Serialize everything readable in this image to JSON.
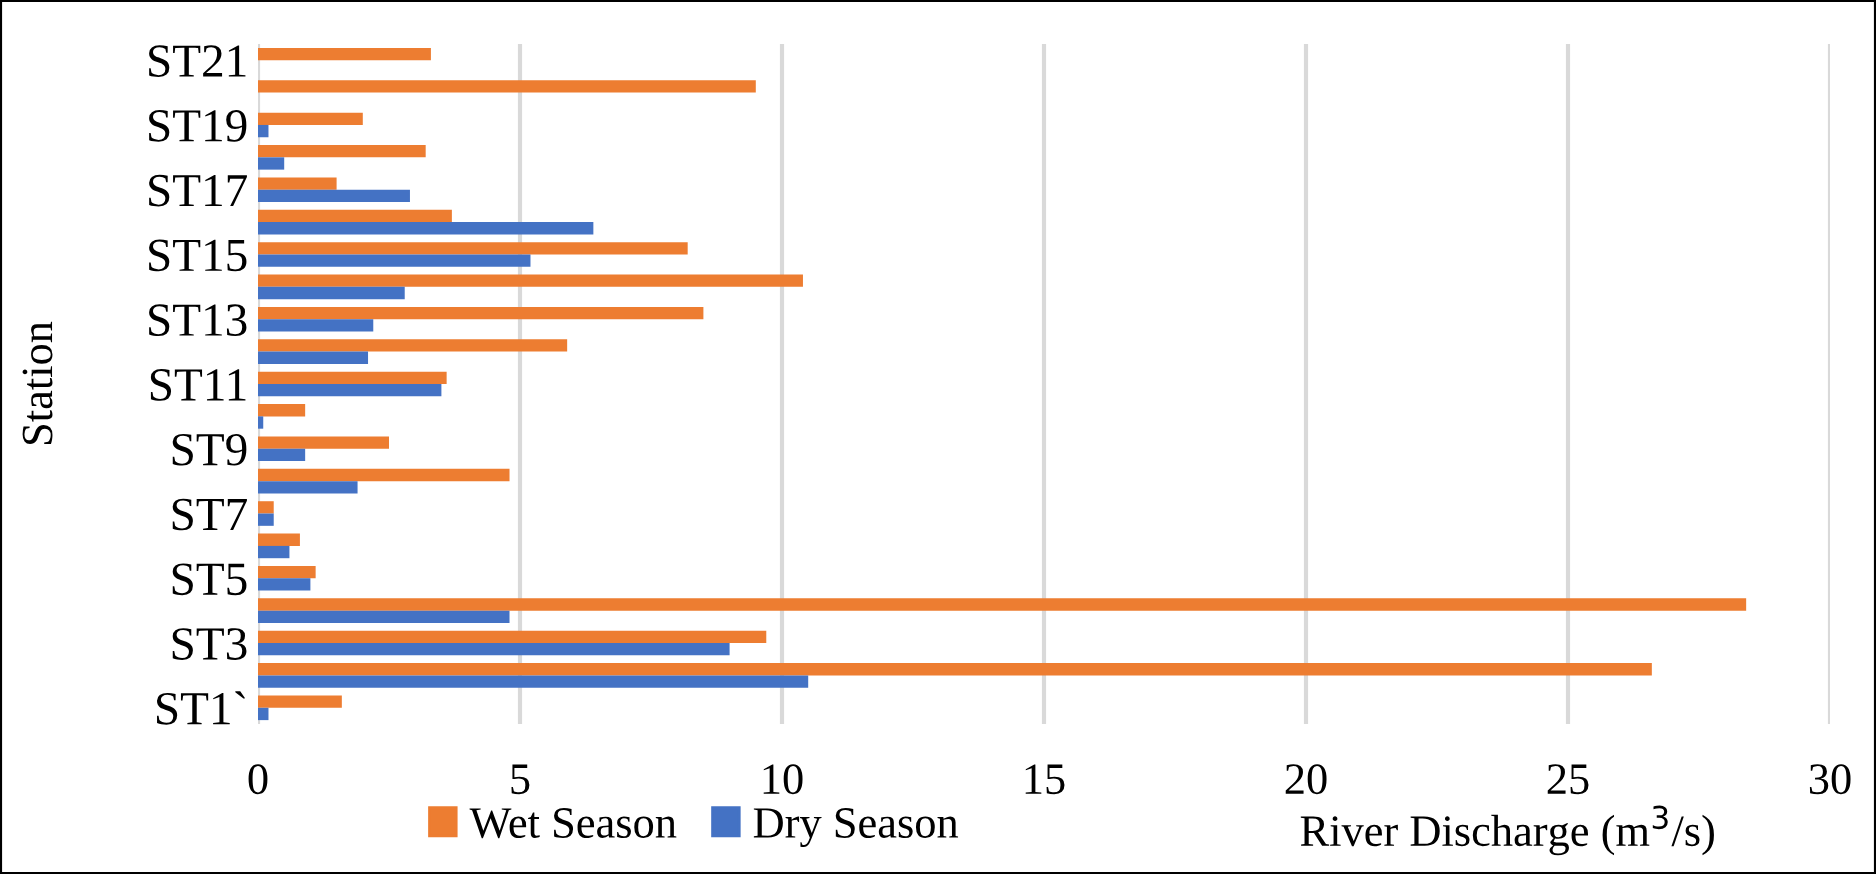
{
  "chart_data": {
    "type": "bar",
    "orientation": "horizontal",
    "ylabel": "Station",
    "xlabel": "River Discharge (m$^{3}$/s)",
    "categories": [
      "ST21",
      null,
      "ST19",
      null,
      "ST17",
      null,
      "ST15",
      null,
      "ST13",
      null,
      "ST11",
      null,
      "ST9",
      null,
      "ST7",
      null,
      "ST5",
      null,
      "ST3",
      null,
      "ST1`"
    ],
    "series": [
      {
        "name": "Wet Season",
        "color": "#ed7d31",
        "values": [
          3.3,
          9.5,
          2.0,
          3.2,
          1.5,
          3.7,
          8.2,
          10.4,
          8.5,
          5.9,
          3.6,
          0.9,
          2.5,
          4.8,
          0.3,
          0.8,
          1.1,
          28.4,
          9.7,
          26.6,
          1.6
        ]
      },
      {
        "name": "Dry Season",
        "color": "#4472c4",
        "values": [
          0,
          0,
          0.2,
          0.5,
          2.9,
          6.4,
          5.2,
          2.8,
          2.2,
          2.1,
          3.5,
          0.1,
          0.9,
          1.9,
          0.3,
          0.6,
          1.0,
          4.8,
          9.0,
          10.5,
          0.2
        ]
      }
    ],
    "xlim": [
      0,
      30
    ],
    "xticks": [
      0,
      5,
      10,
      15,
      20,
      25,
      30
    ],
    "grid": "x",
    "legend": "bottom"
  }
}
